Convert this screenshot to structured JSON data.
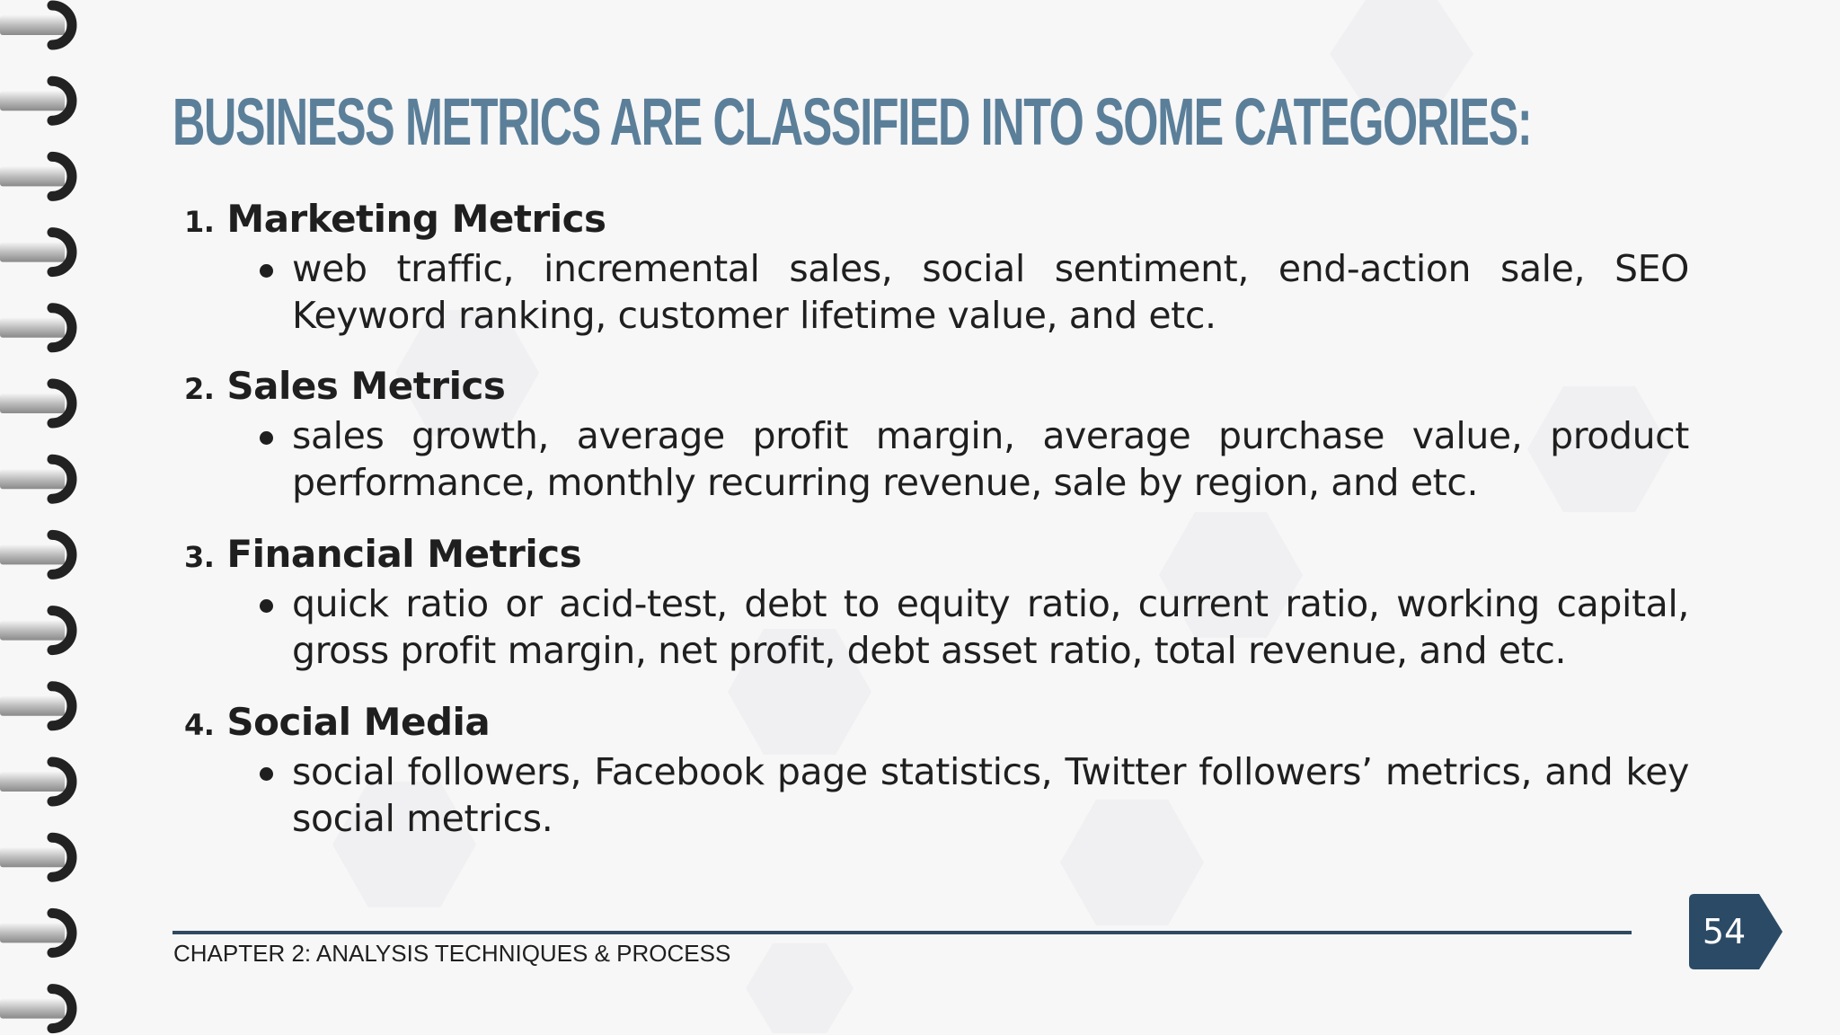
{
  "slide": {
    "title": "Business Metrics are classified into some categories:",
    "categories": [
      {
        "number": "1.",
        "heading": "Marketing Metrics",
        "description": "web traffic, incremental sales, social sentiment, end-action sale, SEO Keyword ranking, customer lifetime value, and etc."
      },
      {
        "number": "2.",
        "heading": "Sales Metrics",
        "description": "sales growth, average profit margin, average purchase value, product performance, monthly recurring revenue, sale by region, and etc."
      },
      {
        "number": "3.",
        "heading": "Financial Metrics",
        "description": "quick ratio or acid-test, debt to equity ratio, current ratio, working capital, gross profit margin, net profit, debt asset ratio, total revenue, and etc."
      },
      {
        "number": "4.",
        "heading": "Social Media",
        "description": "social followers, Facebook page statistics, Twitter followers’ metrics, and key social metrics."
      }
    ]
  },
  "footer": {
    "chapter": "CHAPTER 2: ANALYSIS TECHNIQUES & PROCESS",
    "page_number": "54"
  },
  "colors": {
    "title": "#5b7f99",
    "body_text": "#1f1f1f",
    "footer_line": "#2f4a60",
    "page_badge": "#2b4a66",
    "background": "#f7f7f8"
  },
  "icons": {
    "binding": "spiral-binding-rings",
    "bullet": "bullet-dot",
    "page_badge": "arrow-tag-shape"
  }
}
